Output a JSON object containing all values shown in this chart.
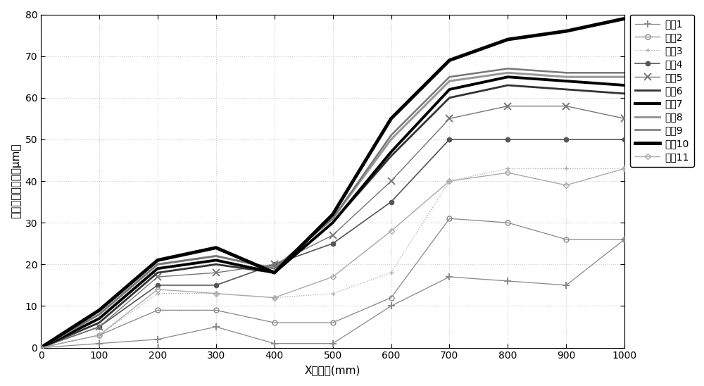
{
  "x": [
    0,
    100,
    200,
    300,
    400,
    500,
    600,
    700,
    800,
    900,
    1000
  ],
  "series": {
    "状态1": [
      0,
      1,
      2,
      5,
      1,
      1,
      10,
      17,
      16,
      15,
      26
    ],
    "状态2": [
      0,
      3,
      9,
      9,
      6,
      6,
      12,
      31,
      30,
      26,
      26
    ],
    "状态3": [
      0,
      3,
      13,
      13,
      12,
      13,
      18,
      40,
      43,
      43,
      43
    ],
    "状态4": [
      0,
      5,
      15,
      15,
      20,
      25,
      35,
      50,
      50,
      50,
      50
    ],
    "状态5": [
      0,
      5,
      17,
      18,
      20,
      27,
      40,
      55,
      58,
      58,
      55
    ],
    "状态6": [
      0,
      6,
      18,
      20,
      18,
      30,
      46,
      60,
      63,
      62,
      61
    ],
    "状态7": [
      0,
      7,
      19,
      21,
      18,
      30,
      47,
      62,
      65,
      64,
      63
    ],
    "状态8": [
      0,
      8,
      20,
      22,
      19,
      31,
      50,
      64,
      66,
      65,
      65
    ],
    "状态9": [
      0,
      8,
      20,
      22,
      19,
      31,
      51,
      65,
      67,
      66,
      66
    ],
    "状态10": [
      0,
      9,
      21,
      24,
      18,
      32,
      55,
      69,
      74,
      76,
      79
    ],
    "状态11": [
      0,
      3,
      14,
      13,
      12,
      17,
      28,
      40,
      42,
      39,
      43
    ]
  },
  "styles": {
    "状态1": {
      "color": "#888888",
      "lw": 0.9,
      "ls": "-",
      "marker": "+",
      "ms": 7,
      "mew": 1.4,
      "mfc": "#888888"
    },
    "状态2": {
      "color": "#888888",
      "lw": 0.9,
      "ls": "-",
      "marker": "o",
      "ms": 5,
      "mew": 1.0,
      "mfc": "none"
    },
    "状态3": {
      "color": "#aaaaaa",
      "lw": 0.9,
      "ls": ":",
      "marker": "+",
      "ms": 5,
      "mew": 1.0,
      "mfc": "#aaaaaa"
    },
    "状态4": {
      "color": "#555555",
      "lw": 1.2,
      "ls": "-",
      "marker": ".",
      "ms": 9,
      "mew": 1.0,
      "mfc": "#555555"
    },
    "状态5": {
      "color": "#777777",
      "lw": 1.0,
      "ls": "-",
      "marker": "x",
      "ms": 7,
      "mew": 1.4,
      "mfc": "#777777"
    },
    "状态6": {
      "color": "#333333",
      "lw": 2.0,
      "ls": "-",
      "marker": "",
      "ms": 0,
      "mew": 0,
      "mfc": "none"
    },
    "状态7": {
      "color": "#000000",
      "lw": 2.8,
      "ls": "-",
      "marker": "",
      "ms": 0,
      "mew": 0,
      "mfc": "none"
    },
    "状态8": {
      "color": "#999999",
      "lw": 2.2,
      "ls": "-",
      "marker": "",
      "ms": 0,
      "mew": 0,
      "mfc": "none"
    },
    "状态9": {
      "color": "#777777",
      "lw": 1.8,
      "ls": "-",
      "marker": "",
      "ms": 0,
      "mew": 0,
      "mfc": "none"
    },
    "状态10": {
      "color": "#000000",
      "lw": 3.5,
      "ls": "-",
      "marker": "",
      "ms": 0,
      "mew": 0,
      "mfc": "none"
    },
    "状态11": {
      "color": "#aaaaaa",
      "lw": 1.0,
      "ls": "-",
      "marker": "D",
      "ms": 4,
      "mew": 1.0,
      "mfc": "none"
    }
  },
  "xlabel": "X轴位置(mm)",
  "ylabel": "补偿前的热误差（μm）",
  "xlim": [
    0,
    1000
  ],
  "ylim": [
    0,
    80
  ],
  "xticks": [
    0,
    100,
    200,
    300,
    400,
    500,
    600,
    700,
    800,
    900,
    1000
  ],
  "yticks": [
    0,
    10,
    20,
    30,
    40,
    50,
    60,
    70,
    80
  ],
  "legend_order": [
    "状态1",
    "状态2",
    "状态3",
    "状态4",
    "状态5",
    "状态6",
    "状态7",
    "状态8",
    "状态9",
    "状态10",
    "状态11"
  ],
  "bg_color": "#ffffff"
}
